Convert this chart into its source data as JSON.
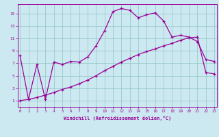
{
  "xlabel": "Windchill (Refroidissement éolien,°C)",
  "bg_color": "#cce8f0",
  "grid_color": "#99cccc",
  "line_color": "#990099",
  "x_ticks": [
    0,
    1,
    2,
    3,
    4,
    5,
    6,
    7,
    8,
    9,
    10,
    11,
    12,
    13,
    14,
    15,
    16,
    17,
    18,
    19,
    20,
    21,
    22,
    23
  ],
  "y_ticks": [
    1,
    3,
    5,
    7,
    9,
    11,
    13,
    15
  ],
  "xlim": [
    -0.3,
    23.3
  ],
  "ylim": [
    0.0,
    16.5
  ],
  "line1_x": [
    0,
    1,
    2,
    3,
    4,
    5,
    6,
    7,
    8,
    9,
    10,
    11,
    12,
    13,
    14,
    15,
    16,
    17,
    18,
    19,
    20,
    21,
    22,
    23
  ],
  "line1_y": [
    8.2,
    1.2,
    6.8,
    1.2,
    7.2,
    6.8,
    7.3,
    7.2,
    8.0,
    9.8,
    12.2,
    15.3,
    15.8,
    15.5,
    14.3,
    14.8,
    15.1,
    13.8,
    11.2,
    11.5,
    11.2,
    10.5,
    7.6,
    7.3
  ],
  "line2_x": [
    0,
    1,
    2,
    3,
    4,
    5,
    6,
    7,
    8,
    9,
    10,
    11,
    12,
    13,
    14,
    15,
    16,
    17,
    18,
    19,
    20,
    21,
    22,
    23
  ],
  "line2_y": [
    1.0,
    1.2,
    1.5,
    1.9,
    2.3,
    2.8,
    3.2,
    3.7,
    4.3,
    5.0,
    5.8,
    6.5,
    7.2,
    7.8,
    8.4,
    8.9,
    9.3,
    9.8,
    10.2,
    10.7,
    11.1,
    11.2,
    5.5,
    5.3
  ]
}
